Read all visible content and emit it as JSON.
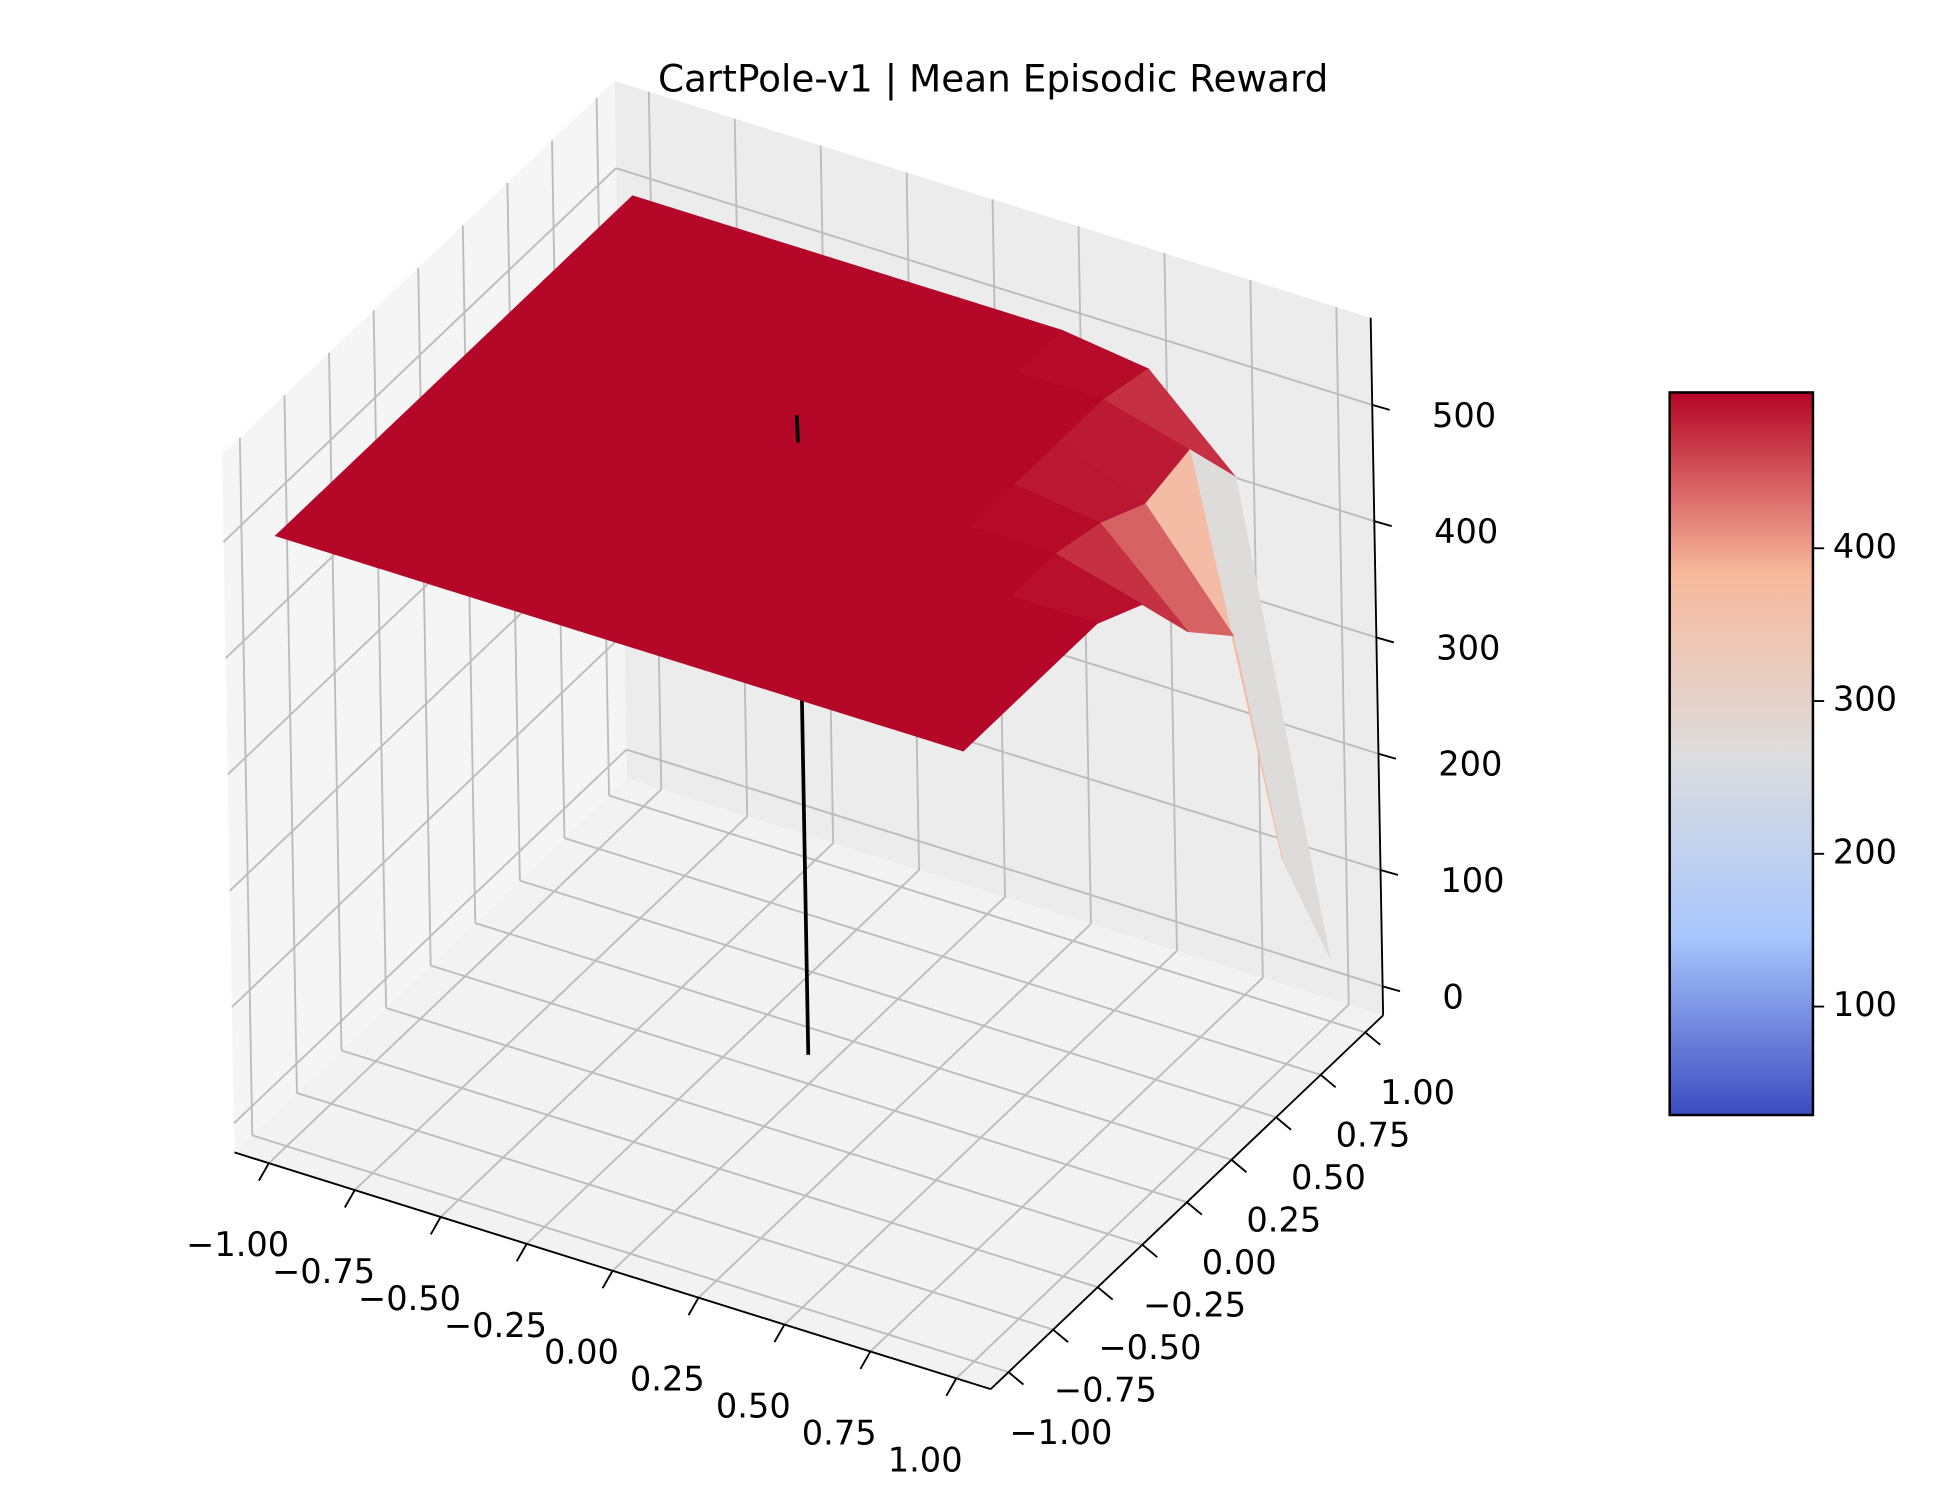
{
  "chart_data": {
    "type": "surface",
    "title": "CartPole-v1 | Mean Episodic Reward",
    "x": [
      -1,
      -0.75,
      -0.5,
      -0.25,
      0,
      0.25,
      0.5,
      0.75,
      1
    ],
    "y": [
      -1,
      -0.75,
      -0.5,
      -0.25,
      0,
      0.25,
      0.5,
      0.75,
      1
    ],
    "z": [
      [
        500,
        500,
        500,
        500,
        500,
        500,
        500,
        500,
        500
      ],
      [
        500,
        500,
        500,
        500,
        500,
        500,
        500,
        500,
        500
      ],
      [
        500,
        500,
        500,
        500,
        500,
        500,
        500,
        500,
        500
      ],
      [
        500,
        500,
        500,
        500,
        500,
        500,
        500,
        500,
        500
      ],
      [
        500,
        500,
        500,
        500,
        500,
        500,
        500,
        500,
        480
      ],
      [
        500,
        500,
        500,
        500,
        500,
        500,
        500,
        490,
        420
      ],
      [
        500,
        500,
        500,
        500,
        500,
        500,
        500,
        470,
        380
      ],
      [
        500,
        500,
        500,
        500,
        500,
        500,
        500,
        480,
        150
      ],
      [
        500,
        500,
        500,
        500,
        500,
        500,
        490,
        420,
        30
      ]
    ],
    "xlim": [
      -1.1,
      1.1
    ],
    "ylim": [
      -1.1,
      1.1
    ],
    "zlim": [
      -25,
      575
    ],
    "xticks": [
      {
        "value": -1,
        "label": "−1.00"
      },
      {
        "value": -0.75,
        "label": "−0.75"
      },
      {
        "value": -0.5,
        "label": "−0.50"
      },
      {
        "value": -0.25,
        "label": "−0.25"
      },
      {
        "value": 0,
        "label": "0.00"
      },
      {
        "value": 0.25,
        "label": "0.25"
      },
      {
        "value": 0.5,
        "label": "0.50"
      },
      {
        "value": 0.75,
        "label": "0.75"
      },
      {
        "value": 1,
        "label": "1.00"
      }
    ],
    "yticks": [
      {
        "value": -1,
        "label": "−1.00"
      },
      {
        "value": -0.75,
        "label": "−0.75"
      },
      {
        "value": -0.5,
        "label": "−0.50"
      },
      {
        "value": -0.25,
        "label": "−0.25"
      },
      {
        "value": 0,
        "label": "0.00"
      },
      {
        "value": 0.25,
        "label": "0.25"
      },
      {
        "value": 0.5,
        "label": "0.50"
      },
      {
        "value": 0.75,
        "label": "0.75"
      },
      {
        "value": 1,
        "label": "1.00"
      }
    ],
    "zticks": [
      0,
      100,
      200,
      300,
      400,
      500
    ],
    "colormap": [
      "#3b4cc0",
      "#aac7fd",
      "#dddddd",
      "#f7b89c",
      "#b40426"
    ],
    "clim": [
      29,
      502
    ],
    "cticks": [
      100,
      200,
      300,
      400
    ],
    "vline": {
      "x": 0,
      "y": 0,
      "z": [
        0,
        550
      ],
      "color": "#000000"
    },
    "grid": true
  }
}
